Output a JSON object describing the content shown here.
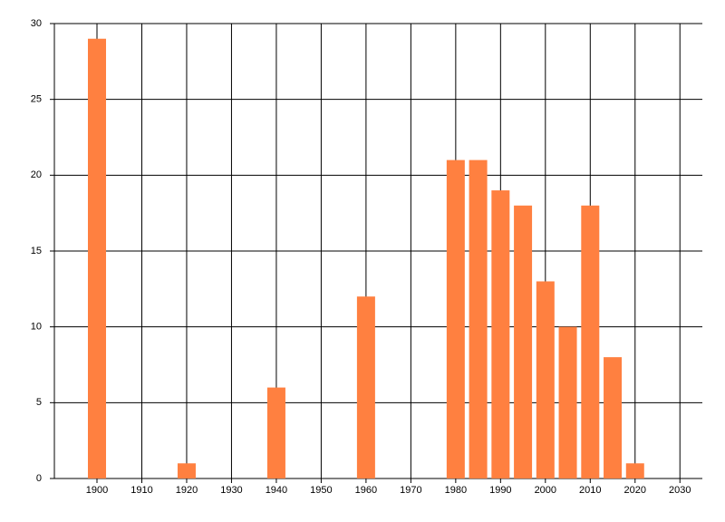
{
  "chart_data": {
    "type": "bar",
    "x": [
      1900,
      1920,
      1940,
      1960,
      1980,
      1985,
      1990,
      1995,
      2000,
      2005,
      2010,
      2015,
      2020
    ],
    "values": [
      29,
      1,
      6,
      12,
      21,
      21,
      19,
      18,
      13,
      10,
      18,
      8,
      1
    ],
    "color": "#ff8040",
    "xlim": [
      1890.5,
      2035
    ],
    "xticks": [
      1900,
      1910,
      1920,
      1930,
      1940,
      1950,
      1960,
      1970,
      1980,
      1990,
      2000,
      2010,
      2020,
      2030
    ],
    "ylim": [
      0,
      30
    ],
    "yticks": [
      0,
      5,
      10,
      15,
      20,
      25,
      30
    ],
    "grid": true
  }
}
